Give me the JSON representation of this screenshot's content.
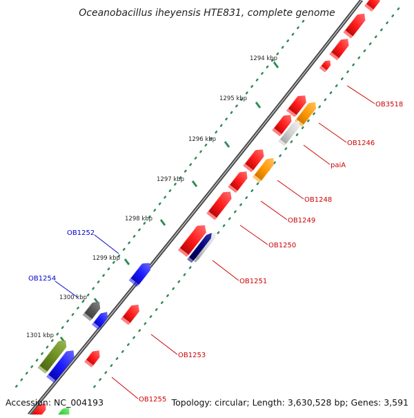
{
  "title": "Oceanobacillus iheyensis HTE831, complete genome",
  "footer": {
    "accession": "Accession: NC_004193",
    "summary": "Topology: circular; Length: 3,630,528 bp; Genes: 3,591"
  },
  "colors": {
    "red": "#ff1a1a",
    "blue": "#1a1aff",
    "orange": "#ff9900",
    "gray": "#cccccc",
    "dark_gray": "#555555",
    "navy": "#00007a",
    "olive": "#6b8e23",
    "green": "#33cc33",
    "tick_dots": "#2e8b57",
    "backbone": "#666666",
    "label_red": "#cc0000",
    "label_blue": "#0000cc"
  },
  "ticks": [
    "1294 kbp",
    "1295 kbp",
    "1296 kbp",
    "1297 kbp",
    "1298 kbp",
    "1299 kbp",
    "1300 kbp",
    "1301 kbp"
  ],
  "gene_labels": [
    {
      "name": "OB3518",
      "color": "red"
    },
    {
      "name": "OB1246",
      "color": "red"
    },
    {
      "name": "paiA",
      "color": "red"
    },
    {
      "name": "OB1248",
      "color": "red"
    },
    {
      "name": "OB1249",
      "color": "red"
    },
    {
      "name": "OB1250",
      "color": "red"
    },
    {
      "name": "OB1251",
      "color": "red"
    },
    {
      "name": "OB1252",
      "color": "blue"
    },
    {
      "name": "OB1253",
      "color": "red"
    },
    {
      "name": "OB1254",
      "color": "blue"
    },
    {
      "name": "OB1255",
      "color": "red"
    }
  ],
  "features": [
    {
      "name": "gene-arrow-1",
      "color": "red"
    },
    {
      "name": "gene-arrow-2",
      "color": "red"
    },
    {
      "name": "gene-arrow-3",
      "color": "red"
    },
    {
      "name": "gene-arrow-4",
      "color": "red"
    },
    {
      "name": "gene-arrow-5",
      "color": "red"
    },
    {
      "name": "gene-arrow-6",
      "color": "orange"
    },
    {
      "name": "gene-arrow-7",
      "color": "gray"
    },
    {
      "name": "gene-arrow-8",
      "color": "red"
    },
    {
      "name": "gene-arrow-9",
      "color": "red"
    },
    {
      "name": "gene-arrow-10",
      "color": "orange"
    },
    {
      "name": "gene-arrow-11",
      "color": "red"
    },
    {
      "name": "gene-arrow-12",
      "color": "red"
    },
    {
      "name": "gene-arrow-13",
      "color": "red"
    },
    {
      "name": "gene-arrow-14",
      "color": "gray"
    },
    {
      "name": "gene-arrow-15",
      "color": "navy"
    },
    {
      "name": "gene-arrow-16",
      "color": "blue"
    },
    {
      "name": "gene-arrow-17",
      "color": "red"
    },
    {
      "name": "gene-arrow-18",
      "color": "dark_gray"
    },
    {
      "name": "gene-arrow-19",
      "color": "blue"
    },
    {
      "name": "gene-arrow-20",
      "color": "olive"
    },
    {
      "name": "gene-arrow-21",
      "color": "blue"
    },
    {
      "name": "gene-arrow-22",
      "color": "red"
    },
    {
      "name": "gene-arrow-23",
      "color": "red"
    },
    {
      "name": "gene-arrow-24",
      "color": "green"
    }
  ]
}
